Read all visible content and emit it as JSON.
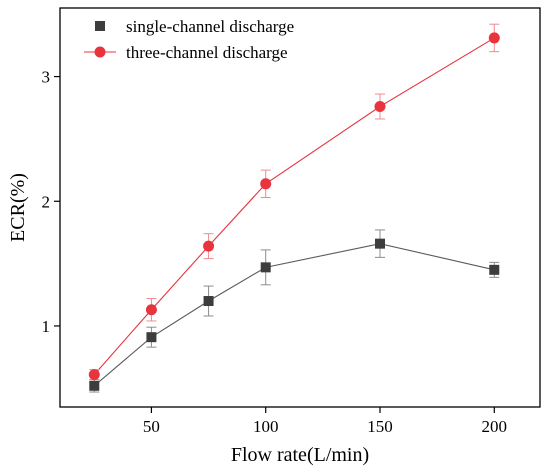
{
  "chart_data": {
    "type": "line",
    "xlabel": "Flow rate(L/min)",
    "ylabel": "ECR(%)",
    "xlim": [
      10,
      220
    ],
    "ylim": [
      0.35,
      3.55
    ],
    "xticks": [
      50,
      100,
      150,
      200
    ],
    "yticks": [
      1,
      2,
      3
    ],
    "legend_position": "top-left",
    "grid": false,
    "series": [
      {
        "name": "single-channel discharge",
        "marker": "square",
        "color": "#3d3d3d",
        "line_color": "#5a5a5a",
        "x": [
          25,
          50,
          75,
          100,
          150,
          200
        ],
        "y": [
          0.52,
          0.91,
          1.2,
          1.47,
          1.66,
          1.45
        ],
        "err": [
          0.05,
          0.08,
          0.12,
          0.14,
          0.11,
          0.06
        ]
      },
      {
        "name": "three-channel discharge",
        "marker": "circle",
        "color": "#e8343c",
        "line_color": "#e8343c",
        "x": [
          25,
          50,
          75,
          100,
          150,
          200
        ],
        "y": [
          0.61,
          1.13,
          1.64,
          2.14,
          2.76,
          3.31
        ],
        "err": [
          0.04,
          0.09,
          0.1,
          0.11,
          0.1,
          0.11
        ]
      }
    ]
  }
}
